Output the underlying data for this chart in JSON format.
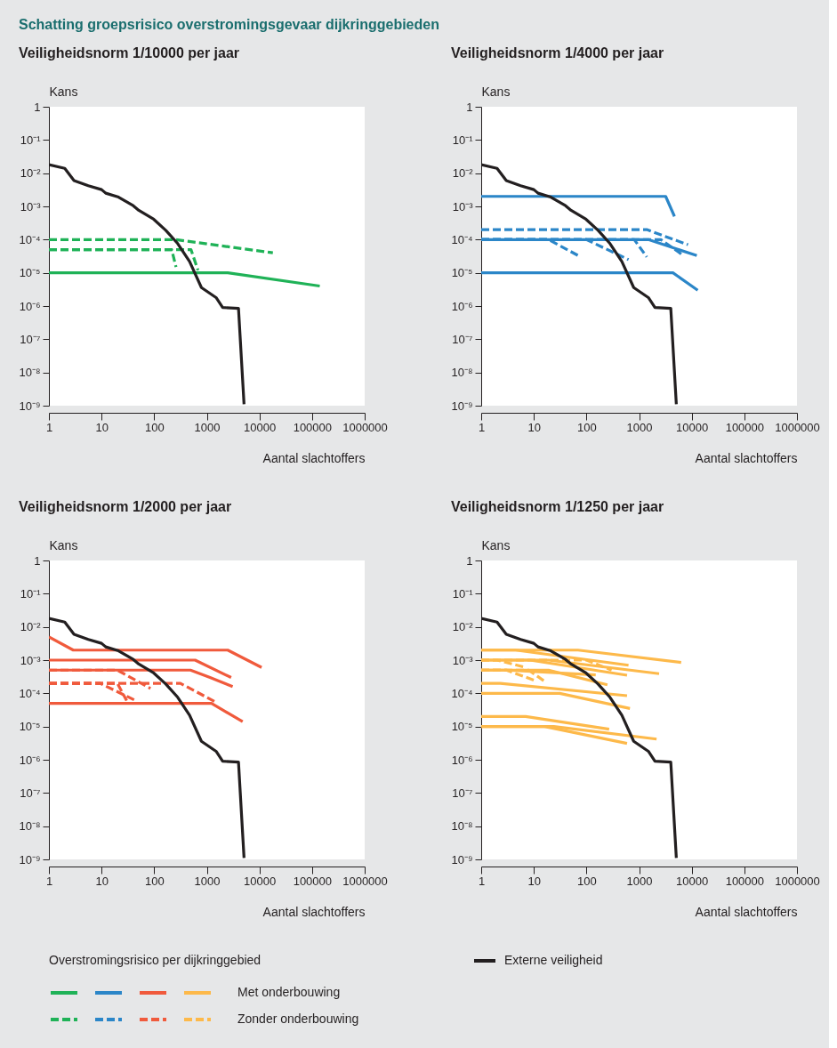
{
  "chart_data": [
    {
      "type": "line",
      "title": "Veiligheidsnorm 1/10000 per jaar",
      "annotations": [
        "Schatting groepsrisico overstromingsgevaar dijkringgebieden"
      ],
      "xlabel": "Aantal slachtoffers",
      "ylabel": "Kans",
      "legend_title": "Overstromingsrisico per dijkringgebied",
      "legend": "bottom",
      "log": "xy",
      "xlim": [
        1,
        1000000
      ],
      "xticks": [
        1,
        10,
        100,
        1000,
        10000,
        100000,
        1000000
      ],
      "ylim": [
        1e-09,
        1
      ],
      "yticks": [
        {
          "value": 1e-09,
          "label": "10⁻⁹"
        },
        {
          "value": 1e-08,
          "label": "10⁻⁸"
        },
        {
          "value": 1e-07,
          "label": "10⁻⁷"
        },
        {
          "value": 1e-06,
          "label": "10⁻⁶"
        },
        {
          "value": 1e-05,
          "label": "10⁻⁵"
        },
        {
          "value": 0.0001,
          "label": "10⁻⁴"
        },
        {
          "value": 0.001,
          "label": "10⁻³"
        },
        {
          "value": 0.01,
          "label": "10⁻²"
        },
        {
          "value": 0.1,
          "label": "10⁻¹"
        },
        1
      ],
      "series": [
        {
          "color": "#1fb257",
          "line_style": "solid",
          "x": [
            1,
            2500,
            140000
          ],
          "values": [
            1e-05,
            1e-05,
            4e-06
          ]
        },
        {
          "color": "#1fb257",
          "line_style": "dashed",
          "x": [
            1,
            260,
            18000
          ],
          "values": [
            0.0001,
            0.0001,
            4e-05
          ]
        },
        {
          "color": "#1fb257",
          "line_style": "dashed",
          "x": [
            1,
            215,
            260
          ],
          "values": [
            5e-05,
            5e-05,
            1.5e-05
          ]
        },
        {
          "color": "#1fb257",
          "line_style": "dashed",
          "x": [
            1,
            500,
            680
          ],
          "values": [
            5e-05,
            5e-05,
            1.2e-05
          ]
        },
        {
          "name": "Externe veiligheid",
          "color": "#231f20",
          "line_style": "solid",
          "x": [
            1,
            2,
            3,
            5.6,
            10,
            12,
            21,
            40,
            51,
            98,
            166,
            280,
            470,
            790,
            1500,
            2000,
            4000,
            5100
          ],
          "values": [
            0.018,
            0.014,
            0.006,
            0.0042,
            0.0032,
            0.0025,
            0.0019,
            0.00105,
            0.00076,
            0.00041,
            0.00019,
            7.6e-05,
            2.2e-05,
            3.6e-06,
            1.8e-06,
            9e-07,
            8.5e-07,
            1.1e-09
          ]
        }
      ]
    },
    {
      "type": "line",
      "title": "Veiligheidsnorm 1/4000 per jaar",
      "xlabel": "Aantal slachtoffers",
      "ylabel": "Kans",
      "legend": "bottom",
      "log": "xy",
      "xlim": [
        1,
        1000000
      ],
      "xticks": [
        1,
        10,
        100,
        1000,
        10000,
        100000,
        1000000
      ],
      "ylim": [
        1e-09,
        1
      ],
      "yticks": [
        {
          "value": 1e-09,
          "label": "10⁻⁹"
        },
        {
          "value": 1e-08,
          "label": "10⁻⁸"
        },
        {
          "value": 1e-07,
          "label": "10⁻⁷"
        },
        {
          "value": 1e-06,
          "label": "10⁻⁶"
        },
        {
          "value": 1e-05,
          "label": "10⁻⁵"
        },
        {
          "value": 0.0001,
          "label": "10⁻⁴"
        },
        {
          "value": 0.001,
          "label": "10⁻³"
        },
        {
          "value": 0.01,
          "label": "10⁻²"
        },
        {
          "value": 0.1,
          "label": "10⁻¹"
        },
        1
      ],
      "series": [
        {
          "color": "#2b86c8",
          "line_style": "solid",
          "x": [
            1,
            3200,
            4700
          ],
          "values": [
            0.002,
            0.002,
            0.0005
          ]
        },
        {
          "color": "#2b86c8",
          "line_style": "solid",
          "x": [
            1,
            4400,
            13000
          ],
          "values": [
            1e-05,
            1e-05,
            3e-06
          ]
        },
        {
          "color": "#2b86c8",
          "line_style": "solid",
          "x": [
            1,
            1500,
            12500
          ],
          "values": [
            0.0001,
            0.0001,
            3.3e-05
          ]
        },
        {
          "color": "#2b86c8",
          "line_style": "dashed",
          "x": [
            1,
            1400,
            8500
          ],
          "values": [
            0.0002,
            0.0002,
            7e-05
          ]
        },
        {
          "color": "#2b86c8",
          "line_style": "dashed",
          "x": [
            1,
            19,
            78
          ],
          "values": [
            0.0001,
            0.0001,
            3e-05
          ]
        },
        {
          "color": "#2b86c8",
          "line_style": "dashed",
          "x": [
            1,
            100,
            630
          ],
          "values": [
            0.0001,
            0.0001,
            2.5e-05
          ]
        },
        {
          "color": "#2b86c8",
          "line_style": "dashed",
          "x": [
            1,
            810,
            1400
          ],
          "values": [
            0.0001,
            0.0001,
            3e-05
          ]
        },
        {
          "color": "#2b86c8",
          "line_style": "dashed",
          "x": [
            1,
            2600,
            7000
          ],
          "values": [
            0.0001,
            0.0001,
            3.3e-05
          ]
        },
        {
          "name": "Externe veiligheid",
          "color": "#231f20",
          "line_style": "solid",
          "x": [
            1,
            2,
            3,
            5.6,
            10,
            12,
            21,
            40,
            51,
            98,
            166,
            280,
            470,
            790,
            1500,
            2000,
            4000,
            5100
          ],
          "values": [
            0.018,
            0.014,
            0.006,
            0.0042,
            0.0032,
            0.0025,
            0.0019,
            0.00105,
            0.00076,
            0.00041,
            0.00019,
            7.6e-05,
            2.2e-05,
            3.6e-06,
            1.8e-06,
            9e-07,
            8.5e-07,
            1.1e-09
          ]
        }
      ]
    },
    {
      "type": "line",
      "title": "Veiligheidsnorm 1/2000 per jaar",
      "xlabel": "Aantal slachtoffers",
      "ylabel": "Kans",
      "legend": "bottom",
      "log": "xy",
      "xlim": [
        1,
        1000000
      ],
      "xticks": [
        1,
        10,
        100,
        1000,
        10000,
        100000,
        1000000
      ],
      "ylim": [
        1e-09,
        1
      ],
      "yticks": [
        {
          "value": 1e-09,
          "label": "10⁻⁹"
        },
        {
          "value": 1e-08,
          "label": "10⁻⁸"
        },
        {
          "value": 1e-07,
          "label": "10⁻⁷"
        },
        {
          "value": 1e-06,
          "label": "10⁻⁶"
        },
        {
          "value": 1e-05,
          "label": "10⁻⁵"
        },
        {
          "value": 0.0001,
          "label": "10⁻⁴"
        },
        {
          "value": 0.001,
          "label": "10⁻³"
        },
        {
          "value": 0.01,
          "label": "10⁻²"
        },
        {
          "value": 0.1,
          "label": "10⁻¹"
        },
        1
      ],
      "series": [
        {
          "color": "#f05a3c",
          "line_style": "solid",
          "x": [
            1,
            2.9,
            2500,
            11000
          ],
          "values": [
            0.005,
            0.002,
            0.002,
            0.0006
          ]
        },
        {
          "color": "#f05a3c",
          "line_style": "solid",
          "x": [
            1,
            600,
            2900
          ],
          "values": [
            0.001,
            0.001,
            0.0003
          ]
        },
        {
          "color": "#f05a3c",
          "line_style": "solid",
          "x": [
            1,
            490,
            1150,
            3100
          ],
          "values": [
            0.0005,
            0.0005,
            0.0003,
            0.00016
          ]
        },
        {
          "color": "#f05a3c",
          "line_style": "solid",
          "x": [
            1,
            1230,
            4800
          ],
          "values": [
            5e-05,
            5e-05,
            1.4e-05
          ]
        },
        {
          "color": "#f05a3c",
          "line_style": "dashed",
          "x": [
            1,
            9.4,
            45
          ],
          "values": [
            0.0002,
            0.0002,
            6e-05
          ]
        },
        {
          "color": "#f05a3c",
          "line_style": "dashed",
          "x": [
            1,
            20,
            30
          ],
          "values": [
            0.0002,
            0.0002,
            6e-05
          ]
        },
        {
          "color": "#f05a3c",
          "line_style": "dashed",
          "x": [
            1,
            20,
            85
          ],
          "values": [
            0.0005,
            0.0005,
            0.00014
          ]
        },
        {
          "color": "#f05a3c",
          "line_style": "dashed",
          "x": [
            1,
            315,
            1400
          ],
          "values": [
            0.0002,
            0.0002,
            5.7e-05
          ]
        },
        {
          "name": "Externe veiligheid",
          "color": "#231f20",
          "line_style": "solid",
          "x": [
            1,
            2,
            3,
            5.6,
            10,
            12,
            21,
            40,
            51,
            98,
            166,
            280,
            470,
            790,
            1500,
            2000,
            4000,
            5100
          ],
          "values": [
            0.018,
            0.014,
            0.006,
            0.0042,
            0.0032,
            0.0025,
            0.0019,
            0.00105,
            0.00076,
            0.00041,
            0.00019,
            7.6e-05,
            2.2e-05,
            3.6e-06,
            1.8e-06,
            9e-07,
            8.5e-07,
            1.1e-09
          ]
        }
      ]
    },
    {
      "type": "line",
      "title": "Veiligheidsnorm 1/1250 per jaar",
      "xlabel": "Aantal slachtoffers",
      "ylabel": "Kans",
      "legend": "bottom",
      "log": "xy",
      "xlim": [
        1,
        1000000
      ],
      "xticks": [
        1,
        10,
        100,
        1000,
        10000,
        100000,
        1000000
      ],
      "ylim": [
        1e-09,
        1
      ],
      "yticks": [
        {
          "value": 1e-09,
          "label": "10⁻⁹"
        },
        {
          "value": 1e-08,
          "label": "10⁻⁸"
        },
        {
          "value": 1e-07,
          "label": "10⁻⁷"
        },
        {
          "value": 1e-06,
          "label": "10⁻⁶"
        },
        {
          "value": 1e-05,
          "label": "10⁻⁵"
        },
        {
          "value": 0.0001,
          "label": "10⁻⁴"
        },
        {
          "value": 0.001,
          "label": "10⁻³"
        },
        {
          "value": 0.01,
          "label": "10⁻²"
        },
        {
          "value": 0.1,
          "label": "10⁻¹"
        },
        1
      ],
      "series": [
        {
          "name": "Met onderbouwing",
          "color": "#fdb94a",
          "line_style": "solid",
          "x": [
            1,
            69,
            6300
          ],
          "values": [
            0.002,
            0.002,
            0.00085
          ]
        },
        {
          "color": "#fdb94a",
          "line_style": "solid",
          "x": [
            1,
            4.5,
            630
          ],
          "values": [
            0.002,
            0.002,
            0.0007
          ]
        },
        {
          "color": "#fdb94a",
          "line_style": "solid",
          "x": [
            1,
            19,
            2400
          ],
          "values": [
            0.001,
            0.001,
            0.00039
          ]
        },
        {
          "color": "#fdb94a",
          "line_style": "solid",
          "x": [
            1,
            8.5,
            590
          ],
          "values": [
            0.001,
            0.001,
            0.00035
          ]
        },
        {
          "color": "#fdb94a",
          "line_style": "solid",
          "x": [
            1,
            19,
            250
          ],
          "values": [
            0.0005,
            0.0005,
            0.00018
          ]
        },
        {
          "color": "#fdb94a",
          "line_style": "solid",
          "x": [
            1,
            3,
            150
          ],
          "values": [
            0.0005,
            0.0005,
            0.00036
          ]
        },
        {
          "color": "#fdb94a",
          "line_style": "solid",
          "x": [
            1,
            2.3,
            590
          ],
          "values": [
            0.0002,
            0.0002,
            8.5e-05
          ]
        },
        {
          "color": "#fdb94a",
          "line_style": "solid",
          "x": [
            1,
            31,
            670
          ],
          "values": [
            0.0001,
            0.0001,
            3.5e-05
          ]
        },
        {
          "color": "#fdb94a",
          "line_style": "solid",
          "x": [
            1,
            7,
            270
          ],
          "values": [
            2e-05,
            2e-05,
            8.3e-06
          ]
        },
        {
          "color": "#fdb94a",
          "line_style": "solid",
          "x": [
            1,
            24,
            2150
          ],
          "values": [
            1e-05,
            1e-05,
            4.2e-06
          ]
        },
        {
          "color": "#fdb94a",
          "line_style": "solid",
          "x": [
            1,
            16,
            590
          ],
          "values": [
            1e-05,
            1e-05,
            3.1e-06
          ]
        },
        {
          "name": "Zonder onderbouwing",
          "color": "#fdb94a",
          "line_style": "dashed",
          "x": [
            1,
            2,
            7
          ],
          "values": [
            0.001,
            0.001,
            0.0006
          ]
        },
        {
          "color": "#fdb94a",
          "line_style": "dashed",
          "x": [
            1,
            3,
            10
          ],
          "values": [
            0.0005,
            0.0005,
            0.00025
          ]
        },
        {
          "color": "#fdb94a",
          "line_style": "dashed",
          "x": [
            1,
            8,
            16
          ],
          "values": [
            0.0005,
            0.0005,
            0.00023
          ]
        },
        {
          "color": "#fdb94a",
          "line_style": "dashed",
          "x": [
            1,
            100,
            300
          ],
          "values": [
            0.001,
            0.001,
            0.0005
          ]
        },
        {
          "name": "Externe veiligheid",
          "color": "#231f20",
          "line_style": "solid",
          "x": [
            1,
            2,
            3,
            5.6,
            10,
            12,
            21,
            40,
            51,
            98,
            166,
            280,
            470,
            790,
            1500,
            2000,
            4000,
            5100
          ],
          "values": [
            0.018,
            0.014,
            0.006,
            0.0042,
            0.0032,
            0.0025,
            0.0019,
            0.00105,
            0.00076,
            0.00041,
            0.00019,
            7.6e-05,
            2.2e-05,
            3.6e-06,
            1.8e-06,
            9e-07,
            8.5e-07,
            1.1e-09
          ]
        }
      ]
    }
  ]
}
